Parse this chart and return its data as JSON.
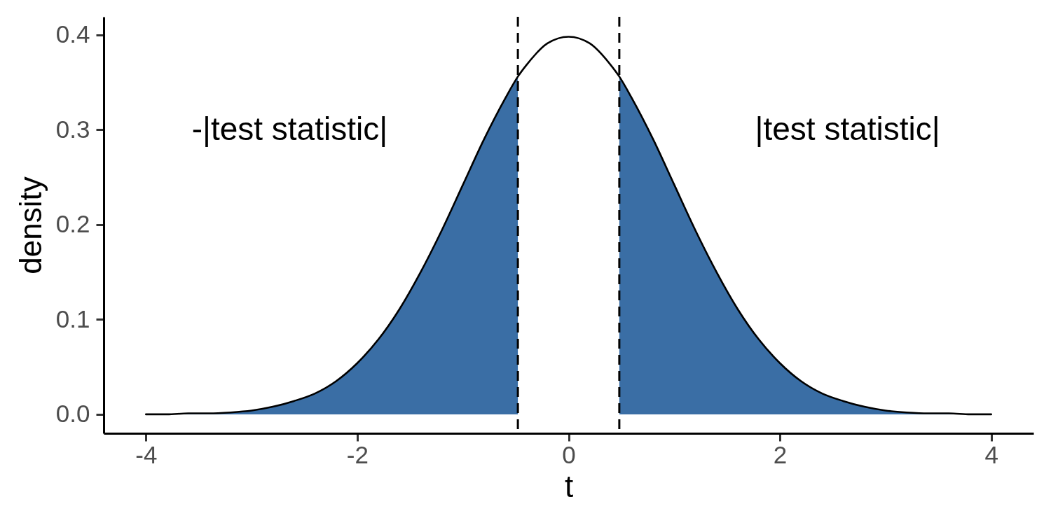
{
  "chart_data": {
    "type": "line",
    "xlabel": "t",
    "ylabel": "density",
    "annotations": [
      "-|test statistic|",
      "|test statistic|"
    ],
    "xlim": [
      -4.4,
      4.4
    ],
    "ylim": [
      -0.02,
      0.419
    ],
    "xticks": [
      -4,
      -2,
      0,
      2,
      4
    ],
    "yticks": [
      {
        "value": 0,
        "label": "0.0"
      },
      0.1,
      0.2,
      0.3,
      0.4
    ],
    "ref_lines": [
      {
        "axis": "x",
        "value": -0.48,
        "color": "#000000",
        "line_style": "dashed"
      },
      {
        "axis": "x",
        "value": 0.48,
        "color": "#000000",
        "line_style": "dashed"
      }
    ],
    "series": [
      {
        "type": "area",
        "color": "#3a6ea5",
        "x": [
          -4,
          -3.8,
          -3.6,
          -3.4,
          -3.2,
          -3,
          -2.8,
          -2.6,
          -2.4,
          -2.2,
          -2,
          -1.8,
          -1.6,
          -1.4,
          -1.2,
          -1,
          -0.8,
          -0.6,
          -0.48
        ],
        "values": [
          0.0,
          0.0,
          0.001,
          0.001,
          0.002,
          0.004,
          0.008,
          0.014,
          0.022,
          0.035,
          0.054,
          0.079,
          0.111,
          0.15,
          0.194,
          0.242,
          0.29,
          0.333,
          0.356
        ]
      },
      {
        "type": "area",
        "color": "#3a6ea5",
        "x": [
          0.48,
          0.6,
          0.8,
          1,
          1.2,
          1.4,
          1.6,
          1.8,
          2,
          2.2,
          2.4,
          2.6,
          2.8,
          3,
          3.2,
          3.4,
          3.6,
          3.8,
          4
        ],
        "values": [
          0.356,
          0.333,
          0.29,
          0.242,
          0.194,
          0.15,
          0.111,
          0.079,
          0.054,
          0.035,
          0.022,
          0.014,
          0.008,
          0.004,
          0.002,
          0.001,
          0.001,
          0.0,
          0.0
        ]
      },
      {
        "color": "#000000",
        "x": [
          -4,
          -3.8,
          -3.6,
          -3.4,
          -3.2,
          -3,
          -2.8,
          -2.6,
          -2.4,
          -2.2,
          -2,
          -1.8,
          -1.6,
          -1.4,
          -1.2,
          -1,
          -0.8,
          -0.6,
          -0.48,
          -0.4,
          -0.2,
          0,
          0.2,
          0.4,
          0.48,
          0.6,
          0.8,
          1,
          1.2,
          1.4,
          1.6,
          1.8,
          2,
          2.2,
          2.4,
          2.6,
          2.8,
          3,
          3.2,
          3.4,
          3.6,
          3.8,
          4
        ],
        "values": [
          0.0,
          0.0,
          0.001,
          0.001,
          0.002,
          0.004,
          0.008,
          0.014,
          0.022,
          0.035,
          0.054,
          0.079,
          0.111,
          0.15,
          0.194,
          0.242,
          0.29,
          0.333,
          0.356,
          0.368,
          0.391,
          0.398,
          0.391,
          0.368,
          0.356,
          0.333,
          0.29,
          0.242,
          0.194,
          0.15,
          0.111,
          0.079,
          0.054,
          0.035,
          0.022,
          0.014,
          0.008,
          0.004,
          0.002,
          0.001,
          0.001,
          0.0,
          0.0
        ]
      }
    ]
  }
}
